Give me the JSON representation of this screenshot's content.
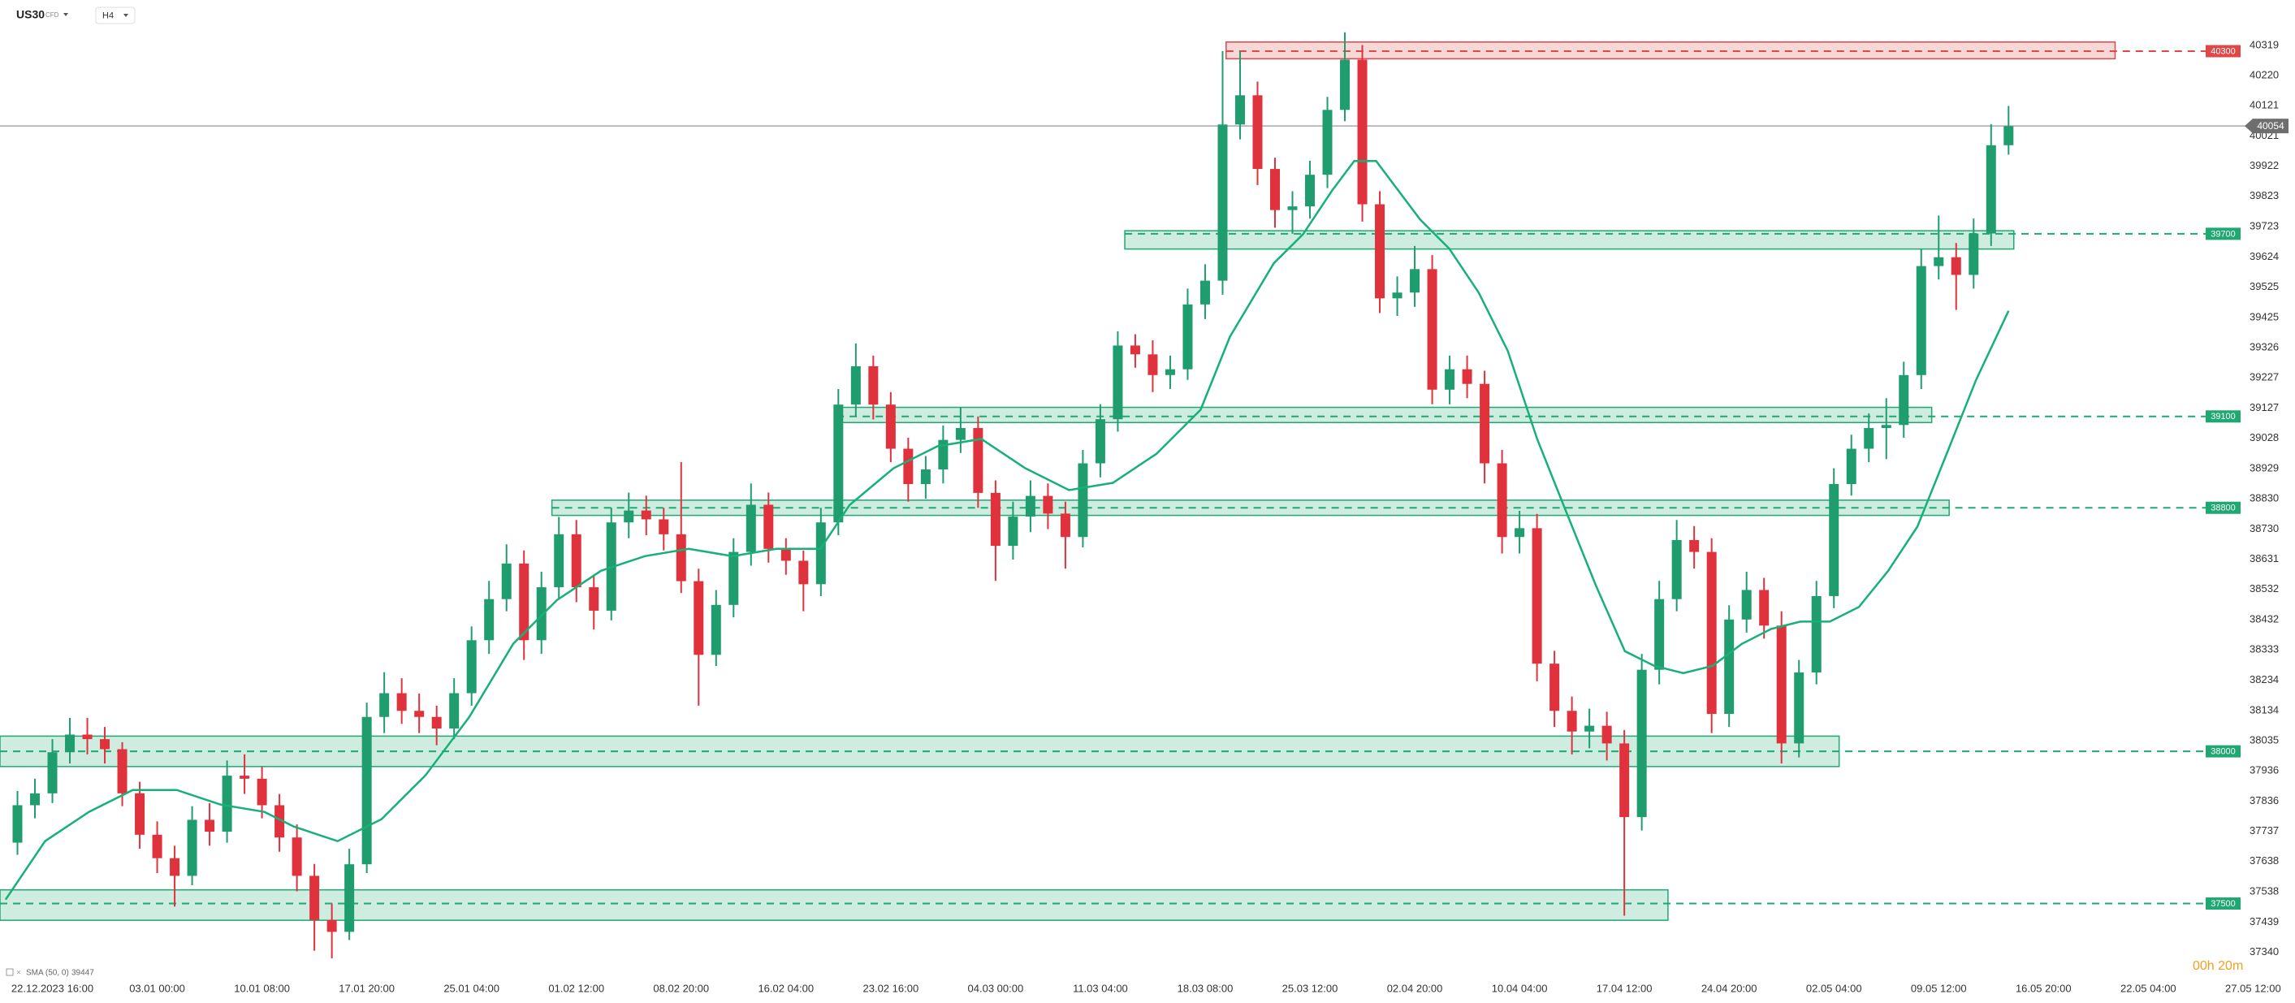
{
  "header": {
    "symbol": "US30",
    "instrument_type": "CFD",
    "timeframe": "H4"
  },
  "chart_data": {
    "type": "candlestick",
    "up_color": "#1f9d6f",
    "down_color": "#e0323d",
    "xlim": [
      0,
      131.4
    ],
    "ylim": [
      37272,
      40468
    ],
    "xticks": [
      {
        "value": 3,
        "label": "22.12.2023 16:00"
      },
      {
        "value": 9,
        "label": "03.01 00:00"
      },
      {
        "value": 15,
        "label": "10.01 08:00"
      },
      {
        "value": 21,
        "label": "17.01 20:00"
      },
      {
        "value": 27,
        "label": "25.01 04:00"
      },
      {
        "value": 33,
        "label": "01.02 12:00"
      },
      {
        "value": 39,
        "label": "08.02 20:00"
      },
      {
        "value": 45,
        "label": "16.02 04:00"
      },
      {
        "value": 51,
        "label": "23.02 16:00"
      },
      {
        "value": 57,
        "label": "04.03 00:00"
      },
      {
        "value": 63,
        "label": "11.03 04:00"
      },
      {
        "value": 69,
        "label": "18.03 08:00"
      },
      {
        "value": 75,
        "label": "25.03 12:00"
      },
      {
        "value": 81,
        "label": "02.04 20:00"
      },
      {
        "value": 87,
        "label": "10.04 04:00"
      },
      {
        "value": 93,
        "label": "17.04 12:00"
      },
      {
        "value": 99,
        "label": "24.04 20:00"
      },
      {
        "value": 105,
        "label": "02.05 04:00"
      },
      {
        "value": 111,
        "label": "09.05 12:00"
      },
      {
        "value": 117,
        "label": "16.05 20:00"
      },
      {
        "value": 123,
        "label": "22.05 04:00"
      },
      {
        "value": 129,
        "label": "27.05 12:00"
      }
    ],
    "yticks": [
      40319,
      40220,
      40121,
      40021,
      39922,
      39823,
      39723,
      39624,
      39525,
      39425,
      39326,
      39227,
      39127,
      39028,
      38929,
      38830,
      38730,
      38631,
      38532,
      38432,
      38333,
      38234,
      38134,
      38035,
      37936,
      37836,
      37737,
      37638,
      37538,
      37439,
      37340
    ],
    "candles": [
      [
        37700,
        37870,
        37660,
        37823
      ],
      [
        37823,
        37910,
        37780,
        37862
      ],
      [
        37862,
        38040,
        37830,
        37997
      ],
      [
        37997,
        38110,
        37960,
        38055
      ],
      [
        38055,
        38110,
        37990,
        38040
      ],
      [
        38040,
        38080,
        37960,
        38007
      ],
      [
        38007,
        38030,
        37820,
        37862
      ],
      [
        37862,
        37900,
        37680,
        37726
      ],
      [
        37726,
        37770,
        37600,
        37649
      ],
      [
        37649,
        37690,
        37490,
        37591
      ],
      [
        37591,
        37820,
        37560,
        37775
      ],
      [
        37775,
        37830,
        37690,
        37736
      ],
      [
        37736,
        37970,
        37700,
        37920
      ],
      [
        37920,
        37990,
        37860,
        37910
      ],
      [
        37910,
        37950,
        37780,
        37823
      ],
      [
        37823,
        37860,
        37670,
        37717
      ],
      [
        37717,
        37760,
        37540,
        37591
      ],
      [
        37591,
        37630,
        37345,
        37446
      ],
      [
        37446,
        37500,
        37320,
        37407
      ],
      [
        37407,
        37680,
        37380,
        37629
      ],
      [
        37629,
        38160,
        37600,
        38113
      ],
      [
        38113,
        38260,
        38060,
        38191
      ],
      [
        38191,
        38240,
        38090,
        38133
      ],
      [
        38133,
        38190,
        38060,
        38113
      ],
      [
        38113,
        38150,
        38020,
        38075
      ],
      [
        38075,
        38240,
        38040,
        38191
      ],
      [
        38191,
        38410,
        38150,
        38365
      ],
      [
        38365,
        38560,
        38320,
        38500
      ],
      [
        38500,
        38680,
        38460,
        38617
      ],
      [
        38617,
        38660,
        38300,
        38365
      ],
      [
        38365,
        38590,
        38320,
        38539
      ],
      [
        38539,
        38770,
        38500,
        38713
      ],
      [
        38713,
        38760,
        38490,
        38539
      ],
      [
        38539,
        38580,
        38400,
        38462
      ],
      [
        38462,
        38800,
        38430,
        38752
      ],
      [
        38752,
        38850,
        38700,
        38791
      ],
      [
        38791,
        38840,
        38710,
        38762
      ],
      [
        38762,
        38800,
        38660,
        38713
      ],
      [
        38713,
        38950,
        38520,
        38559
      ],
      [
        38559,
        38600,
        38150,
        38317
      ],
      [
        38317,
        38530,
        38280,
        38481
      ],
      [
        38481,
        38700,
        38440,
        38655
      ],
      [
        38655,
        38880,
        38610,
        38810
      ],
      [
        38810,
        38850,
        38620,
        38665
      ],
      [
        38665,
        38700,
        38580,
        38626
      ],
      [
        38626,
        38660,
        38460,
        38549
      ],
      [
        38549,
        38800,
        38510,
        38752
      ],
      [
        38752,
        39190,
        38710,
        39139
      ],
      [
        39139,
        39340,
        39100,
        39265
      ],
      [
        39265,
        39300,
        39090,
        39139
      ],
      [
        39139,
        39180,
        38950,
        38994
      ],
      [
        38994,
        39030,
        38820,
        38878
      ],
      [
        38878,
        38970,
        38830,
        38926
      ],
      [
        38926,
        39070,
        38880,
        39023
      ],
      [
        39023,
        39130,
        38980,
        39062
      ],
      [
        39062,
        39100,
        38800,
        38849
      ],
      [
        38849,
        38890,
        38560,
        38675
      ],
      [
        38675,
        38820,
        38630,
        38771
      ],
      [
        38771,
        38890,
        38720,
        38839
      ],
      [
        38839,
        38880,
        38730,
        38781
      ],
      [
        38781,
        38820,
        38600,
        38704
      ],
      [
        38704,
        38990,
        38670,
        38946
      ],
      [
        38946,
        39140,
        38900,
        39091
      ],
      [
        39091,
        39380,
        39050,
        39333
      ],
      [
        39333,
        39370,
        39260,
        39304
      ],
      [
        39304,
        39350,
        39180,
        39236
      ],
      [
        39236,
        39300,
        39190,
        39255
      ],
      [
        39255,
        39520,
        39220,
        39468
      ],
      [
        39468,
        39600,
        39420,
        39546
      ],
      [
        39546,
        40300,
        39500,
        40059
      ],
      [
        40059,
        40300,
        40010,
        40155
      ],
      [
        40155,
        40200,
        39860,
        39913
      ],
      [
        39913,
        39950,
        39720,
        39778
      ],
      [
        39778,
        39840,
        39700,
        39790
      ],
      [
        39790,
        39940,
        39750,
        39894
      ],
      [
        39894,
        40150,
        39850,
        40107
      ],
      [
        40107,
        40362,
        40070,
        40272
      ],
      [
        40272,
        40320,
        39740,
        39797
      ],
      [
        39797,
        39840,
        39440,
        39488
      ],
      [
        39488,
        39560,
        39430,
        39507
      ],
      [
        39507,
        39660,
        39460,
        39584
      ],
      [
        39584,
        39630,
        39140,
        39188
      ],
      [
        39188,
        39300,
        39140,
        39255
      ],
      [
        39255,
        39300,
        39160,
        39207
      ],
      [
        39207,
        39250,
        38880,
        38946
      ],
      [
        38946,
        38990,
        38650,
        38704
      ],
      [
        38704,
        38790,
        38650,
        38733
      ],
      [
        38733,
        38780,
        38230,
        38288
      ],
      [
        38288,
        38330,
        38080,
        38133
      ],
      [
        38133,
        38180,
        37990,
        38065
      ],
      [
        38065,
        38140,
        38010,
        38084
      ],
      [
        38084,
        38130,
        37970,
        38026
      ],
      [
        38026,
        38070,
        37460,
        37784
      ],
      [
        37784,
        38320,
        37740,
        38268
      ],
      [
        38268,
        38560,
        38220,
        38500
      ],
      [
        38500,
        38760,
        38460,
        38694
      ],
      [
        38694,
        38740,
        38600,
        38655
      ],
      [
        38655,
        38700,
        38060,
        38123
      ],
      [
        38123,
        38480,
        38080,
        38433
      ],
      [
        38433,
        38590,
        38390,
        38530
      ],
      [
        38530,
        38570,
        38370,
        38413
      ],
      [
        38413,
        38460,
        37960,
        38026
      ],
      [
        38026,
        38300,
        37980,
        38259
      ],
      [
        38259,
        38560,
        38220,
        38510
      ],
      [
        38510,
        38930,
        38470,
        38878
      ],
      [
        38878,
        39040,
        38840,
        38994
      ],
      [
        38994,
        39110,
        38950,
        39062
      ],
      [
        39062,
        39160,
        38960,
        39072
      ],
      [
        39072,
        39280,
        39030,
        39236
      ],
      [
        39236,
        39650,
        39190,
        39594
      ],
      [
        39594,
        39760,
        39550,
        39623
      ],
      [
        39623,
        39670,
        39450,
        39565
      ],
      [
        39565,
        39750,
        39520,
        39701
      ],
      [
        39701,
        40060,
        39660,
        39991
      ],
      [
        39991,
        40120,
        39960,
        40054
      ]
    ],
    "sma": {
      "name": "SMA (50, 0)",
      "value": 39447,
      "color": "#17b078",
      "x": [
        0.32,
        2.58,
        5.09,
        7.6,
        10.12,
        12.63,
        15.14,
        16.82,
        19.33,
        21.84,
        24.36,
        26.87,
        29.38,
        31.89,
        34.41,
        36.92,
        39.43,
        41.94,
        44.46,
        46.97,
        48.64,
        51.16,
        53.67,
        56.18,
        58.7,
        61.21,
        63.72,
        66.23,
        68.74,
        70.42,
        72.93,
        74.61,
        76.28,
        77.54,
        78.79,
        80.05,
        81.31,
        82.98,
        84.66,
        86.33,
        88.01,
        89.68,
        91.36,
        93.03,
        94.71,
        96.38,
        98.06,
        99.73,
        101.41,
        103.08,
        104.76,
        106.43,
        108.11,
        109.78,
        111.46,
        113.13,
        115
      ],
      "values": [
        37513,
        37705,
        37801,
        37873,
        37873,
        37825,
        37801,
        37753,
        37705,
        37777,
        37921,
        38113,
        38353,
        38497,
        38593,
        38641,
        38665,
        38641,
        38665,
        38665,
        38809,
        38930,
        39002,
        39026,
        38930,
        38858,
        38882,
        38978,
        39122,
        39362,
        39603,
        39699,
        39843,
        39939,
        39939,
        39843,
        39747,
        39651,
        39507,
        39315,
        39026,
        38786,
        38546,
        38329,
        38281,
        38257,
        38281,
        38353,
        38402,
        38426,
        38426,
        38474,
        38593,
        38738,
        38978,
        39219,
        39447
      ]
    },
    "zones": [
      {
        "level": 40300,
        "range": [
          40275,
          40330
        ],
        "x_range": [
          70.2,
          121.1
        ],
        "color": "#e04848"
      },
      {
        "level": 39700,
        "range": [
          39650,
          39710
        ],
        "x_range": [
          64.4,
          115.3
        ],
        "color": "#1fa872"
      },
      {
        "level": 39100,
        "range": [
          39080,
          39130
        ],
        "x_range": [
          47.9,
          110.6
        ],
        "color": "#1fa872"
      },
      {
        "level": 38800,
        "range": [
          38775,
          38825
        ],
        "x_range": [
          31.6,
          111.6
        ],
        "color": "#1fa872"
      },
      {
        "level": 38000,
        "range": [
          37950,
          38050
        ],
        "x_range": [
          0,
          105.3
        ],
        "color": "#1fa872"
      },
      {
        "level": 37500,
        "range": [
          37445,
          37545
        ],
        "x_range": [
          0,
          95.5
        ],
        "color": "#1fa872"
      }
    ],
    "current_price": 40054,
    "timer": "00h 20m"
  }
}
